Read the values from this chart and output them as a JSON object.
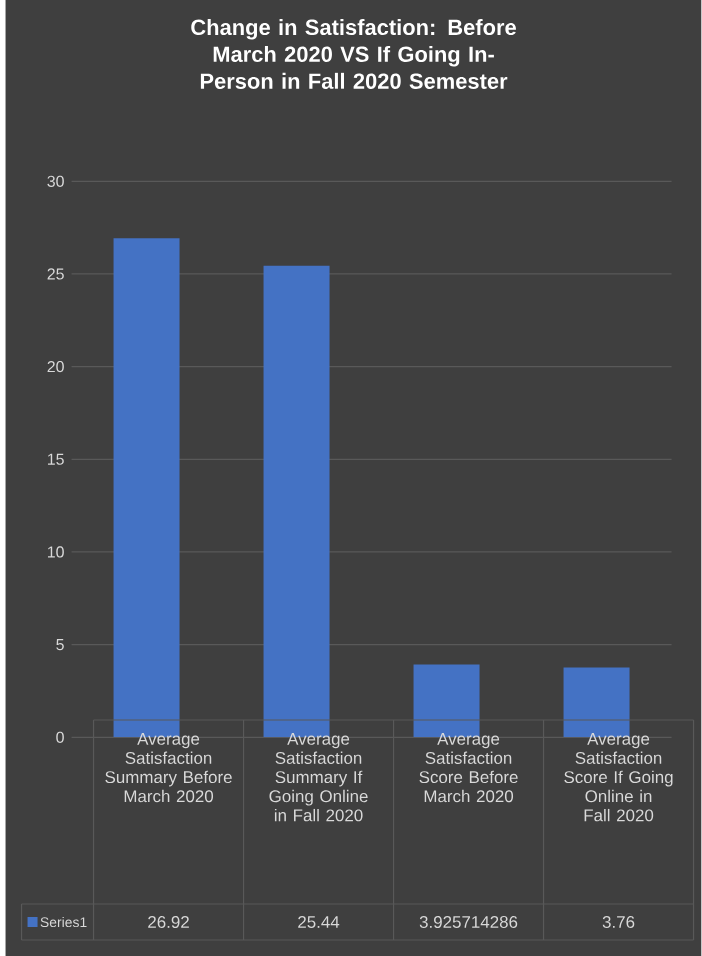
{
  "chart_data": {
    "type": "bar",
    "title": "Change in Satisfaction: Before March 2020 VS If Going In-Person in Fall 2020 Semester",
    "categories": [
      "Average Satisfaction Summary Before March 2020",
      "Average Satisfaction Summary If Going Online in Fall 2020",
      "Average Satisfaction Score Before March 2020",
      "Average Satisfaction Score If Going Online in Fall 2020"
    ],
    "series": [
      {
        "name": "Series1",
        "color": "#4472c4",
        "values": [
          26.92,
          25.44,
          3.925714286,
          3.76
        ]
      }
    ],
    "ylim": [
      0,
      30
    ],
    "yticks": [
      0,
      5,
      10,
      15,
      20,
      25,
      30
    ],
    "grid": "y",
    "legend": "bottom",
    "data_labels": true
  }
}
